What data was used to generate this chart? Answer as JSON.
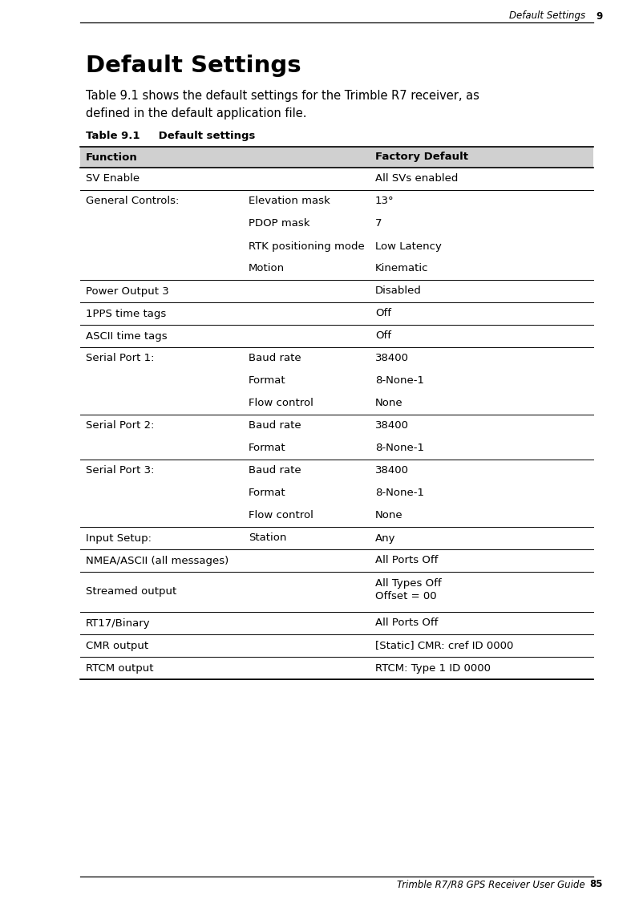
{
  "page_width": 7.92,
  "page_height": 11.21,
  "dpi": 100,
  "bg_color": "#ffffff",
  "header_text": "Default Settings",
  "header_page": "9",
  "title": "Default Settings",
  "body_text": "Table 9.1 shows the default settings for the Trimble R7 receiver, as\ndefined in the default application file.",
  "table_caption": "Table 9.1     Default settings",
  "footer_text": "Trimble R7/R8 GPS Receiver User Guide",
  "footer_page": "85",
  "table_header_bg": "#d0d0d0",
  "header_row": [
    "Function",
    "Factory Default"
  ],
  "rows": [
    {
      "col1": "SV Enable",
      "col2": "",
      "col3": "All SVs enabled",
      "sep": true,
      "lines": 1
    },
    {
      "col1": "General Controls:",
      "col2": "Elevation mask",
      "col3": "13°",
      "sep": false,
      "lines": 1
    },
    {
      "col1": "",
      "col2": "PDOP mask",
      "col3": "7",
      "sep": false,
      "lines": 1
    },
    {
      "col1": "",
      "col2": "RTK positioning mode",
      "col3": "Low Latency",
      "sep": false,
      "lines": 1
    },
    {
      "col1": "",
      "col2": "Motion",
      "col3": "Kinematic",
      "sep": true,
      "lines": 1
    },
    {
      "col1": "Power Output 3",
      "col2": "",
      "col3": "Disabled",
      "sep": true,
      "lines": 1
    },
    {
      "col1": "1PPS time tags",
      "col2": "",
      "col3": "Off",
      "sep": true,
      "lines": 1
    },
    {
      "col1": "ASCII time tags",
      "col2": "",
      "col3": "Off",
      "sep": true,
      "lines": 1
    },
    {
      "col1": "Serial Port 1:",
      "col2": "Baud rate",
      "col3": "38400",
      "sep": false,
      "lines": 1
    },
    {
      "col1": "",
      "col2": "Format",
      "col3": "8-None-1",
      "sep": false,
      "lines": 1
    },
    {
      "col1": "",
      "col2": "Flow control",
      "col3": "None",
      "sep": true,
      "lines": 1
    },
    {
      "col1": "Serial Port 2:",
      "col2": "Baud rate",
      "col3": "38400",
      "sep": false,
      "lines": 1
    },
    {
      "col1": "",
      "col2": "Format",
      "col3": "8-None-1",
      "sep": true,
      "lines": 1
    },
    {
      "col1": "Serial Port 3:",
      "col2": "Baud rate",
      "col3": "38400",
      "sep": false,
      "lines": 1
    },
    {
      "col1": "",
      "col2": "Format",
      "col3": "8-None-1",
      "sep": false,
      "lines": 1
    },
    {
      "col1": "",
      "col2": "Flow control",
      "col3": "None",
      "sep": true,
      "lines": 1
    },
    {
      "col1": "Input Setup:",
      "col2": "Station",
      "col3": "Any",
      "sep": true,
      "lines": 1
    },
    {
      "col1": "NMEA/ASCII (all messages)",
      "col2": "",
      "col3": "All Ports Off",
      "sep": true,
      "lines": 1
    },
    {
      "col1": "Streamed output",
      "col2": "",
      "col3": "All Types Off\nOffset = 00",
      "sep": true,
      "lines": 2
    },
    {
      "col1": "RT17/Binary",
      "col2": "",
      "col3": "All Ports Off",
      "sep": true,
      "lines": 1
    },
    {
      "col1": "CMR output",
      "col2": "",
      "col3": "[Static] CMR: cref ID 0000",
      "sep": true,
      "lines": 1
    },
    {
      "col1": "RTCM output",
      "col2": "",
      "col3": "RTCM: Type 1 ID 0000",
      "sep": true,
      "lines": 1
    }
  ]
}
